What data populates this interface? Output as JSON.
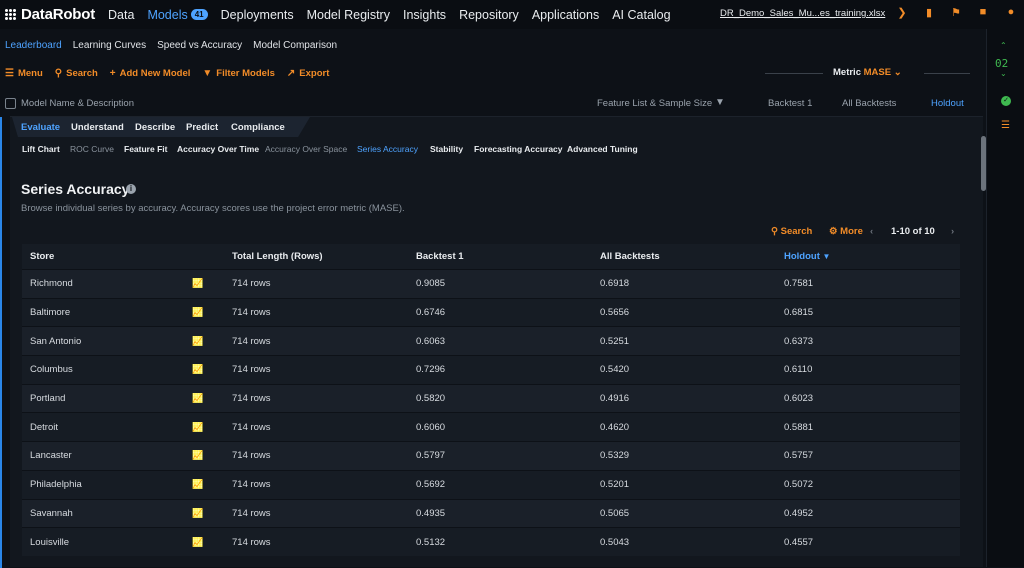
{
  "brand": {
    "name": "DataRobot"
  },
  "topnav": {
    "items": [
      {
        "label": "Data"
      },
      {
        "label": "Models",
        "badge": "41"
      },
      {
        "label": "Deployments"
      },
      {
        "label": "Model Registry"
      },
      {
        "label": "Insights"
      },
      {
        "label": "Repository"
      },
      {
        "label": "Applications"
      },
      {
        "label": "AI Catalog"
      }
    ],
    "project_file": "DR_Demo_Sales_Mu...es_training.xlsx"
  },
  "subtabs": [
    "Leaderboard",
    "Learning Curves",
    "Speed vs Accuracy",
    "Model Comparison"
  ],
  "toolbar": {
    "menu": "Menu",
    "search": "Search",
    "add_model": "Add New Model",
    "filter": "Filter Models",
    "export": "Export",
    "metric_label": "Metric",
    "metric_value": "MASE"
  },
  "leaderboard_header": {
    "model_name": "Model Name & Description",
    "feature_list": "Feature List & Sample Size",
    "backtest1": "Backtest 1",
    "all_backtests": "All Backtests",
    "holdout": "Holdout"
  },
  "sidebar": {
    "counter": "02"
  },
  "eval_tabs": [
    "Evaluate",
    "Understand",
    "Describe",
    "Predict",
    "Compliance"
  ],
  "insight_tabs": [
    "Lift Chart",
    "ROC Curve",
    "Feature Fit",
    "Accuracy Over Time",
    "Accuracy Over Space",
    "Series Accuracy",
    "Stability",
    "Forecasting Accuracy",
    "Advanced Tuning"
  ],
  "section": {
    "title": "Series Accuracy",
    "description": "Browse individual series by accuracy. Accuracy scores use the project error metric (MASE).",
    "search": "Search",
    "more": "More",
    "pagination": "1-10 of 10"
  },
  "table": {
    "columns": [
      "Store",
      "Total Length (Rows)",
      "Backtest 1",
      "All Backtests",
      "Holdout"
    ],
    "rows": [
      {
        "store": "Richmond",
        "length": "714 rows",
        "backtest1": "0.9085",
        "all": "0.6918",
        "holdout": "0.7581"
      },
      {
        "store": "Baltimore",
        "length": "714 rows",
        "backtest1": "0.6746",
        "all": "0.5656",
        "holdout": "0.6815"
      },
      {
        "store": "San Antonio",
        "length": "714 rows",
        "backtest1": "0.6063",
        "all": "0.5251",
        "holdout": "0.6373"
      },
      {
        "store": "Columbus",
        "length": "714 rows",
        "backtest1": "0.7296",
        "all": "0.5420",
        "holdout": "0.6110"
      },
      {
        "store": "Portland",
        "length": "714 rows",
        "backtest1": "0.5820",
        "all": "0.4916",
        "holdout": "0.6023"
      },
      {
        "store": "Detroit",
        "length": "714 rows",
        "backtest1": "0.6060",
        "all": "0.4620",
        "holdout": "0.5881"
      },
      {
        "store": "Lancaster",
        "length": "714 rows",
        "backtest1": "0.5797",
        "all": "0.5329",
        "holdout": "0.5757"
      },
      {
        "store": "Philadelphia",
        "length": "714 rows",
        "backtest1": "0.5692",
        "all": "0.5201",
        "holdout": "0.5072"
      },
      {
        "store": "Savannah",
        "length": "714 rows",
        "backtest1": "0.4935",
        "all": "0.5065",
        "holdout": "0.4952"
      },
      {
        "store": "Louisville",
        "length": "714 rows",
        "backtest1": "0.5132",
        "all": "0.5043",
        "holdout": "0.4557"
      }
    ]
  },
  "colors": {
    "accent": "#4ea3ff",
    "orange": "#f28c28",
    "background": "#0d1117"
  }
}
